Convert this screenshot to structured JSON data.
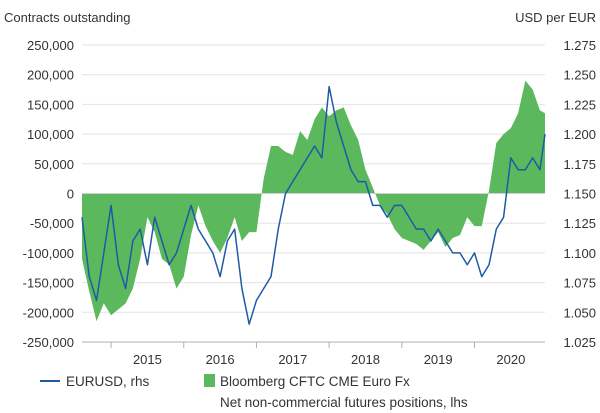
{
  "chart_data": {
    "type": "area",
    "left_axis_title": "Contracts outstanding",
    "right_axis_title": "USD per EUR",
    "left_axis": {
      "min": -250000,
      "max": 250000,
      "ticks": [
        250000,
        200000,
        150000,
        100000,
        50000,
        0,
        -50000,
        -100000,
        -150000,
        -200000,
        -250000
      ],
      "tick_labels": [
        "250,000",
        "200,000",
        "150,000",
        "100,000",
        "50,000",
        "0",
        "-50,000",
        "-100,000",
        "-150,000",
        "-200,000",
        "-250,000"
      ]
    },
    "right_axis": {
      "min": 1.025,
      "max": 1.275,
      "ticks": [
        1.275,
        1.25,
        1.225,
        1.2,
        1.175,
        1.15,
        1.125,
        1.1,
        1.075,
        1.05,
        1.025
      ],
      "tick_labels": [
        "1.275",
        "1.250",
        "1.225",
        "1.200",
        "1.175",
        "1.150",
        "1.125",
        "1.100",
        "1.075",
        "1.050",
        "1.025"
      ]
    },
    "x_axis": {
      "start": 2014.6,
      "end": 2020.97,
      "years": [
        2015,
        2016,
        2017,
        2018,
        2019,
        2020
      ],
      "tick_labels": [
        "2015",
        "2016",
        "2017",
        "2018",
        "2019",
        "2020"
      ]
    },
    "grid": true,
    "legend_position": "bottom",
    "series": [
      {
        "name": "Bloomberg CFTC CME Euro Fx",
        "name_line2": "Net non-commercial futures positions, lhs",
        "kind": "area",
        "axis": "left",
        "color": "#5cb85c",
        "x": [
          2014.6,
          2014.7,
          2014.8,
          2014.9,
          2015.0,
          2015.1,
          2015.2,
          2015.3,
          2015.4,
          2015.5,
          2015.6,
          2015.7,
          2015.8,
          2015.9,
          2016.0,
          2016.1,
          2016.2,
          2016.3,
          2016.4,
          2016.5,
          2016.6,
          2016.7,
          2016.8,
          2016.9,
          2017.0,
          2017.1,
          2017.2,
          2017.3,
          2017.4,
          2017.5,
          2017.6,
          2017.7,
          2017.8,
          2017.9,
          2018.0,
          2018.1,
          2018.2,
          2018.3,
          2018.4,
          2018.5,
          2018.6,
          2018.7,
          2018.8,
          2018.9,
          2019.0,
          2019.1,
          2019.2,
          2019.3,
          2019.4,
          2019.5,
          2019.6,
          2019.7,
          2019.8,
          2019.9,
          2020.0,
          2020.1,
          2020.2,
          2020.3,
          2020.4,
          2020.5,
          2020.6,
          2020.7,
          2020.8,
          2020.9,
          2020.97
        ],
        "y": [
          -110000,
          -165000,
          -215000,
          -185000,
          -205000,
          -195000,
          -185000,
          -160000,
          -110000,
          -40000,
          -65000,
          -110000,
          -120000,
          -160000,
          -140000,
          -70000,
          -20000,
          -55000,
          -80000,
          -100000,
          -75000,
          -40000,
          -80000,
          -65000,
          -65000,
          25000,
          80000,
          80000,
          70000,
          65000,
          105000,
          90000,
          125000,
          145000,
          130000,
          140000,
          145000,
          115000,
          90000,
          40000,
          10000,
          -20000,
          -35000,
          -60000,
          -75000,
          -80000,
          -85000,
          -95000,
          -80000,
          -65000,
          -90000,
          -75000,
          -70000,
          -40000,
          -55000,
          -55000,
          5000,
          85000,
          100000,
          110000,
          135000,
          190000,
          175000,
          140000,
          135000
        ]
      },
      {
        "name": "EURUSD, rhs",
        "kind": "line",
        "axis": "right",
        "color": "#1f5aa6",
        "x": [
          2014.6,
          2014.7,
          2014.8,
          2014.9,
          2015.0,
          2015.1,
          2015.2,
          2015.3,
          2015.4,
          2015.5,
          2015.6,
          2015.7,
          2015.8,
          2015.9,
          2016.0,
          2016.1,
          2016.2,
          2016.3,
          2016.4,
          2016.5,
          2016.6,
          2016.7,
          2016.8,
          2016.9,
          2017.0,
          2017.1,
          2017.2,
          2017.3,
          2017.4,
          2017.5,
          2017.6,
          2017.7,
          2017.8,
          2017.9,
          2018.0,
          2018.1,
          2018.2,
          2018.3,
          2018.4,
          2018.5,
          2018.6,
          2018.7,
          2018.8,
          2018.9,
          2019.0,
          2019.1,
          2019.2,
          2019.3,
          2019.4,
          2019.5,
          2019.6,
          2019.7,
          2019.8,
          2019.9,
          2020.0,
          2020.1,
          2020.2,
          2020.3,
          2020.4,
          2020.5,
          2020.6,
          2020.7,
          2020.8,
          2020.9,
          2020.97
        ],
        "y": [
          1.13,
          1.08,
          1.06,
          1.1,
          1.14,
          1.09,
          1.07,
          1.11,
          1.12,
          1.09,
          1.13,
          1.11,
          1.09,
          1.1,
          1.12,
          1.14,
          1.12,
          1.11,
          1.1,
          1.08,
          1.11,
          1.12,
          1.07,
          1.04,
          1.06,
          1.07,
          1.08,
          1.12,
          1.15,
          1.16,
          1.17,
          1.18,
          1.19,
          1.18,
          1.24,
          1.21,
          1.19,
          1.17,
          1.16,
          1.16,
          1.14,
          1.14,
          1.13,
          1.14,
          1.14,
          1.13,
          1.12,
          1.12,
          1.11,
          1.12,
          1.11,
          1.1,
          1.1,
          1.09,
          1.1,
          1.08,
          1.09,
          1.12,
          1.13,
          1.18,
          1.17,
          1.17,
          1.18,
          1.17,
          1.2
        ]
      }
    ]
  }
}
